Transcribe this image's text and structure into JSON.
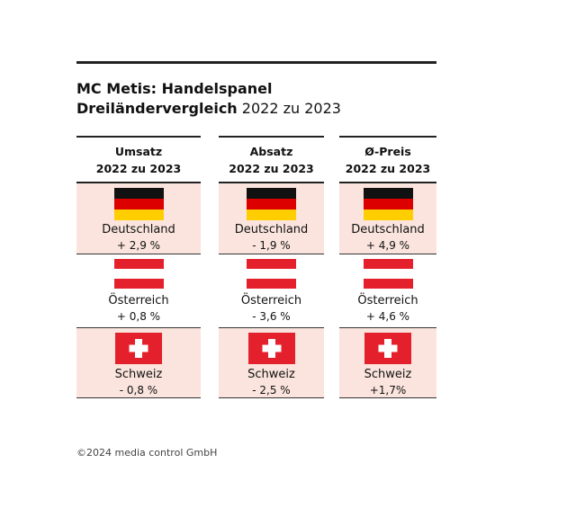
{
  "title": {
    "line1": "MC Metis: Handelspanel",
    "line2_bold": "Dreiländervergleich",
    "line2_rest": "2022 zu 2023"
  },
  "table": {
    "columns": [
      {
        "label": "Umsatz",
        "period": "2022 zu 2023"
      },
      {
        "label": "Absatz",
        "period": "2022 zu 2023"
      },
      {
        "label": "Ø-Preis",
        "period": "2022 zu 2023"
      }
    ],
    "rows": [
      {
        "country": "Deutschland",
        "values": [
          "+ 2,9 %",
          "- 1,9 %",
          "+ 4,9 %"
        ]
      },
      {
        "country": "Österreich",
        "values": [
          "+ 0,8 %",
          "- 3,6 %",
          "+ 4,6 %"
        ]
      },
      {
        "country": "Schweiz",
        "values": [
          "- 0,8 %",
          "- 2,5 %",
          "+1,7%"
        ]
      }
    ]
  },
  "footer": "©2024 media control GmbH"
}
